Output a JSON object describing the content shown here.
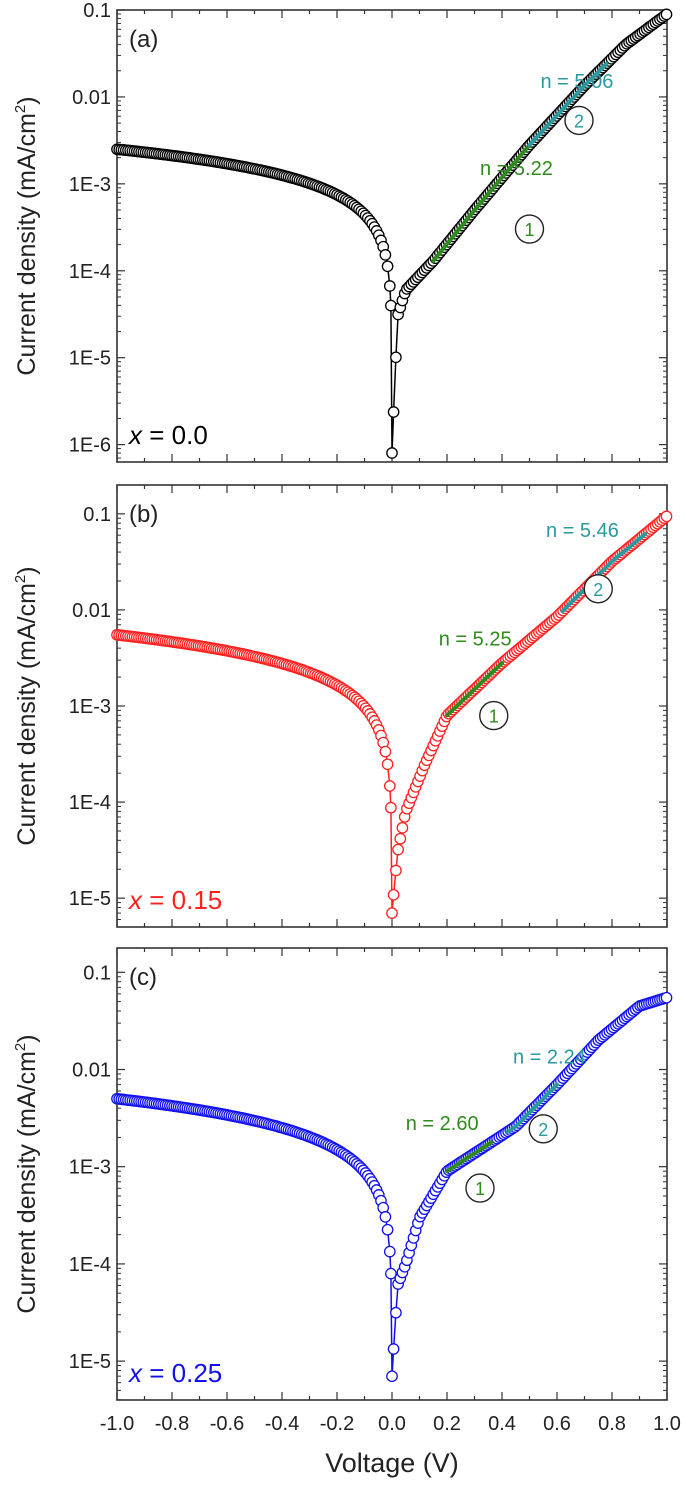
{
  "figure": {
    "xlabel": "Voltage (V)",
    "ylabel_text": "Current density (mA/cm",
    "ylabel_sup": "2",
    "ylabel_close": ")",
    "xticks": [
      "-1.0",
      "-0.8",
      "-0.6",
      "-0.4",
      "-0.2",
      "0.0",
      "0.2",
      "0.4",
      "0.6",
      "0.8",
      "1.0"
    ]
  },
  "chart_data": [
    {
      "type": "scatter",
      "panel_label": "(a)",
      "composition": {
        "var": "x",
        "text": " = 0.0"
      },
      "color": "#000000",
      "xlim": [
        -1.0,
        1.0
      ],
      "ylog": true,
      "ylim_exp": [
        -6.2,
        -1.0
      ],
      "yticks": [
        "0.1",
        "0.01",
        "1E-3",
        "1E-4",
        "1E-5",
        "1E-6"
      ],
      "xlabel": "Voltage (V)",
      "ylabel": "Current density (mA/cm2)",
      "curve": {
        "neg_amp": 0.0025,
        "neg_exp": 0.75,
        "pos_points": [
          [
            0.0,
            8e-07
          ],
          [
            0.02,
            3e-05
          ],
          [
            0.05,
            6e-05
          ],
          [
            0.15,
            0.00013
          ],
          [
            0.3,
            0.0005
          ],
          [
            0.5,
            0.0028
          ],
          [
            0.7,
            0.0135
          ],
          [
            0.85,
            0.04
          ],
          [
            1.0,
            0.09
          ]
        ]
      },
      "fits": [
        {
          "n": "n = 5.22",
          "color": "#2e8b1e",
          "x0": 0.15,
          "x1": 0.5,
          "label_at": [
            0.32,
            -2.9
          ],
          "marker": "1",
          "marker_at": [
            0.5,
            -3.52
          ]
        },
        {
          "n": "n = 5.06",
          "color": "#2a9aa0",
          "x0": 0.5,
          "x1": 0.78,
          "label_at": [
            0.54,
            -1.9
          ],
          "marker": "2",
          "marker_at": [
            0.68,
            -2.27
          ]
        }
      ]
    },
    {
      "type": "scatter",
      "panel_label": "(b)",
      "composition": {
        "var": "x",
        "text": " = 0.15"
      },
      "color": "#ff2020",
      "xlim": [
        -1.0,
        1.0
      ],
      "ylog": true,
      "ylim_exp": [
        -5.3,
        -0.7
      ],
      "yticks": [
        "0.1",
        "0.01",
        "1E-3",
        "1E-4",
        "1E-5"
      ],
      "xlabel": "Voltage (V)",
      "ylabel": "Current density (mA/cm2)",
      "curve": {
        "neg_amp": 0.0055,
        "neg_exp": 0.75,
        "pos_points": [
          [
            0.0,
            7e-06
          ],
          [
            0.02,
            3e-05
          ],
          [
            0.05,
            8e-05
          ],
          [
            0.12,
            0.00025
          ],
          [
            0.2,
            0.0008
          ],
          [
            0.4,
            0.0028
          ],
          [
            0.6,
            0.0085
          ],
          [
            0.8,
            0.032
          ],
          [
            1.0,
            0.095
          ]
        ]
      },
      "fits": [
        {
          "n": "n = 5.25",
          "color": "#2e8b1e",
          "x0": 0.2,
          "x1": 0.4,
          "label_at": [
            0.17,
            -2.37
          ],
          "marker": "1",
          "marker_at": [
            0.37,
            -3.1
          ]
        },
        {
          "n": "n = 5.46",
          "color": "#2a9aa0",
          "x0": 0.62,
          "x1": 0.92,
          "label_at": [
            0.56,
            -1.24
          ],
          "marker": "2",
          "marker_at": [
            0.75,
            -1.78
          ]
        }
      ]
    },
    {
      "type": "scatter",
      "panel_label": "(c)",
      "composition": {
        "var": "x",
        "text": " = 0.25"
      },
      "color": "#1010ee",
      "xlim": [
        -1.0,
        1.0
      ],
      "ylog": true,
      "ylim_exp": [
        -5.4,
        -0.75
      ],
      "yticks": [
        "0.1",
        "0.01",
        "1E-3",
        "1E-4",
        "1E-5"
      ],
      "xlabel": "Voltage (V)",
      "ylabel": "Current density (mA/cm2)",
      "curve": {
        "neg_amp": 0.005,
        "neg_exp": 0.75,
        "pos_points": [
          [
            0.0,
            7e-06
          ],
          [
            0.02,
            6e-05
          ],
          [
            0.05,
            0.0001
          ],
          [
            0.1,
            0.0003
          ],
          [
            0.2,
            0.0009
          ],
          [
            0.35,
            0.0017
          ],
          [
            0.45,
            0.0026
          ],
          [
            0.6,
            0.007
          ],
          [
            0.75,
            0.02
          ],
          [
            0.9,
            0.045
          ],
          [
            1.0,
            0.055
          ]
        ]
      },
      "fits": [
        {
          "n": "n = 2.60",
          "color": "#2e8b1e",
          "x0": 0.2,
          "x1": 0.36,
          "label_at": [
            0.05,
            -2.62
          ],
          "marker": "1",
          "marker_at": [
            0.32,
            -3.22
          ]
        },
        {
          "n": "n = 2.24",
          "color": "#2a9aa0",
          "x0": 0.42,
          "x1": 0.6,
          "label_at": [
            0.44,
            -1.94
          ],
          "marker": "2",
          "marker_at": [
            0.55,
            -2.61
          ]
        }
      ]
    }
  ]
}
